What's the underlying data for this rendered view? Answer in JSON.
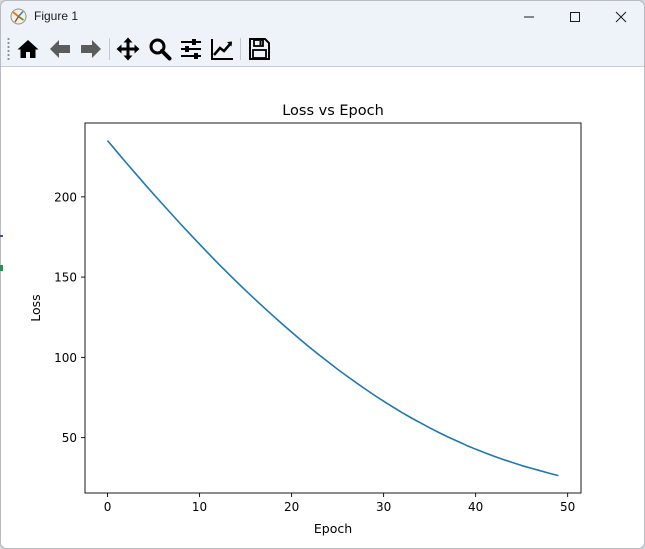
{
  "window": {
    "title": "Figure 1"
  },
  "toolbar": {
    "tools": [
      {
        "name": "home",
        "icon": "home-icon"
      },
      {
        "name": "back",
        "icon": "arrow-left-icon"
      },
      {
        "name": "forward",
        "icon": "arrow-right-icon"
      },
      {
        "name": "pan",
        "icon": "move-icon"
      },
      {
        "name": "zoom",
        "icon": "magnifier-icon"
      },
      {
        "name": "subplots",
        "icon": "sliders-icon"
      },
      {
        "name": "edit-axis",
        "icon": "chart-line-icon"
      },
      {
        "name": "save",
        "icon": "floppy-disk-icon"
      }
    ]
  },
  "chart_data": {
    "type": "line",
    "title": "Loss vs Epoch",
    "xlabel": "Epoch",
    "ylabel": "Loss",
    "xlim": [
      -2.45,
      51.45
    ],
    "ylim": [
      15.5,
      246.0
    ],
    "xticks": [
      0,
      10,
      20,
      30,
      40,
      50
    ],
    "yticks": [
      50,
      100,
      150,
      200
    ],
    "grid": false,
    "series": [
      {
        "color": "#1f77b4",
        "x": [
          0,
          1,
          2,
          3,
          4,
          5,
          6,
          7,
          8,
          9,
          10,
          11,
          12,
          13,
          14,
          15,
          16,
          17,
          18,
          19,
          20,
          21,
          22,
          23,
          24,
          25,
          26,
          27,
          28,
          29,
          30,
          31,
          32,
          33,
          34,
          35,
          36,
          37,
          38,
          39,
          40,
          41,
          42,
          43,
          44,
          45,
          46,
          47,
          48,
          49
        ],
        "y": [
          235.0,
          228.2,
          221.4,
          214.8,
          208.2,
          201.7,
          195.3,
          189.0,
          182.7,
          176.6,
          170.5,
          164.5,
          158.6,
          152.9,
          147.2,
          141.7,
          136.3,
          131.0,
          125.8,
          120.7,
          115.7,
          110.8,
          106.1,
          101.5,
          97.0,
          92.6,
          88.4,
          84.3,
          80.3,
          76.4,
          72.7,
          69.1,
          65.6,
          62.3,
          59.2,
          56.1,
          53.2,
          50.4,
          47.8,
          45.2,
          42.8,
          40.6,
          38.4,
          36.4,
          34.5,
          32.6,
          31.0,
          29.4,
          27.8,
          26.3
        ]
      }
    ]
  }
}
